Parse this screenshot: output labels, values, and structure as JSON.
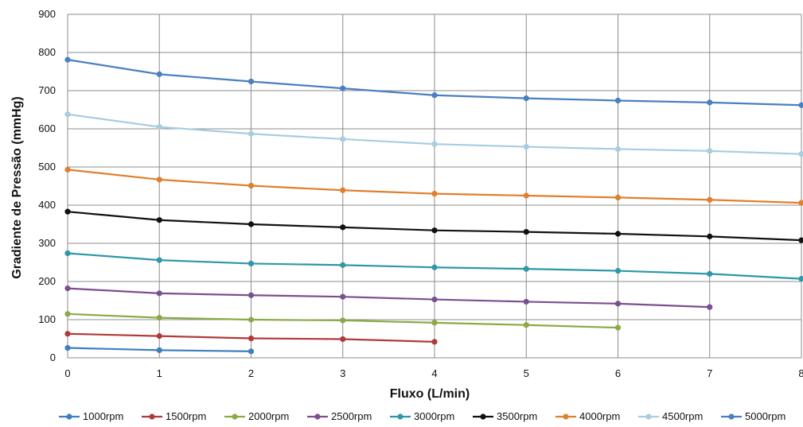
{
  "chart_data": {
    "type": "line",
    "xlabel": "Fluxo (L/min)",
    "ylabel": "Gradiente de Pressão (mmHg)",
    "xlim": [
      0,
      8
    ],
    "ylim": [
      0,
      900
    ],
    "xticks": [
      "0",
      "1",
      "2",
      "3",
      "4",
      "5",
      "6",
      "7",
      "8"
    ],
    "yticks": [
      "0",
      "100",
      "200",
      "300",
      "400",
      "500",
      "600",
      "700",
      "800",
      "900"
    ],
    "grid": true,
    "legend_position": "bottom",
    "series": [
      {
        "name": "1000rpm",
        "color": "#3f7fbf",
        "x": [
          0,
          1,
          2
        ],
        "y": [
          26,
          20,
          17
        ]
      },
      {
        "name": "1500rpm",
        "color": "#b03a3a",
        "x": [
          0,
          1,
          2,
          3,
          4
        ],
        "y": [
          63,
          57,
          51,
          49,
          42
        ]
      },
      {
        "name": "2000rpm",
        "color": "#8aaa45",
        "x": [
          0,
          1,
          2,
          3,
          4,
          5,
          6
        ],
        "y": [
          115,
          105,
          100,
          98,
          92,
          86,
          79
        ]
      },
      {
        "name": "2500rpm",
        "color": "#7a4f91",
        "x": [
          0,
          1,
          2,
          3,
          4,
          5,
          6,
          7
        ],
        "y": [
          182,
          169,
          164,
          160,
          153,
          147,
          142,
          133
        ]
      },
      {
        "name": "3000rpm",
        "color": "#2e97a8",
        "x": [
          0,
          1,
          2,
          3,
          4,
          5,
          6,
          7,
          8
        ],
        "y": [
          274,
          256,
          247,
          243,
          237,
          233,
          228,
          220,
          207
        ]
      },
      {
        "name": "3500rpm",
        "color": "#111111",
        "x": [
          0,
          1,
          2,
          3,
          4,
          5,
          6,
          7,
          8
        ],
        "y": [
          383,
          361,
          350,
          342,
          334,
          330,
          325,
          318,
          308
        ]
      },
      {
        "name": "4000rpm",
        "color": "#e07f2e",
        "x": [
          0,
          1,
          2,
          3,
          4,
          5,
          6,
          7,
          8
        ],
        "y": [
          493,
          467,
          451,
          439,
          430,
          425,
          420,
          414,
          406
        ]
      },
      {
        "name": "4500rpm",
        "color": "#a8cde0",
        "x": [
          0,
          1,
          2,
          3,
          4,
          5,
          6,
          7,
          8
        ],
        "y": [
          638,
          605,
          587,
          573,
          560,
          553,
          547,
          542,
          534
        ]
      },
      {
        "name": "5000rpm",
        "color": "#4a7fc1",
        "x": [
          0,
          1,
          2,
          3,
          4,
          5,
          6,
          7,
          8
        ],
        "y": [
          781,
          743,
          724,
          706,
          688,
          680,
          674,
          669,
          662
        ]
      }
    ]
  }
}
